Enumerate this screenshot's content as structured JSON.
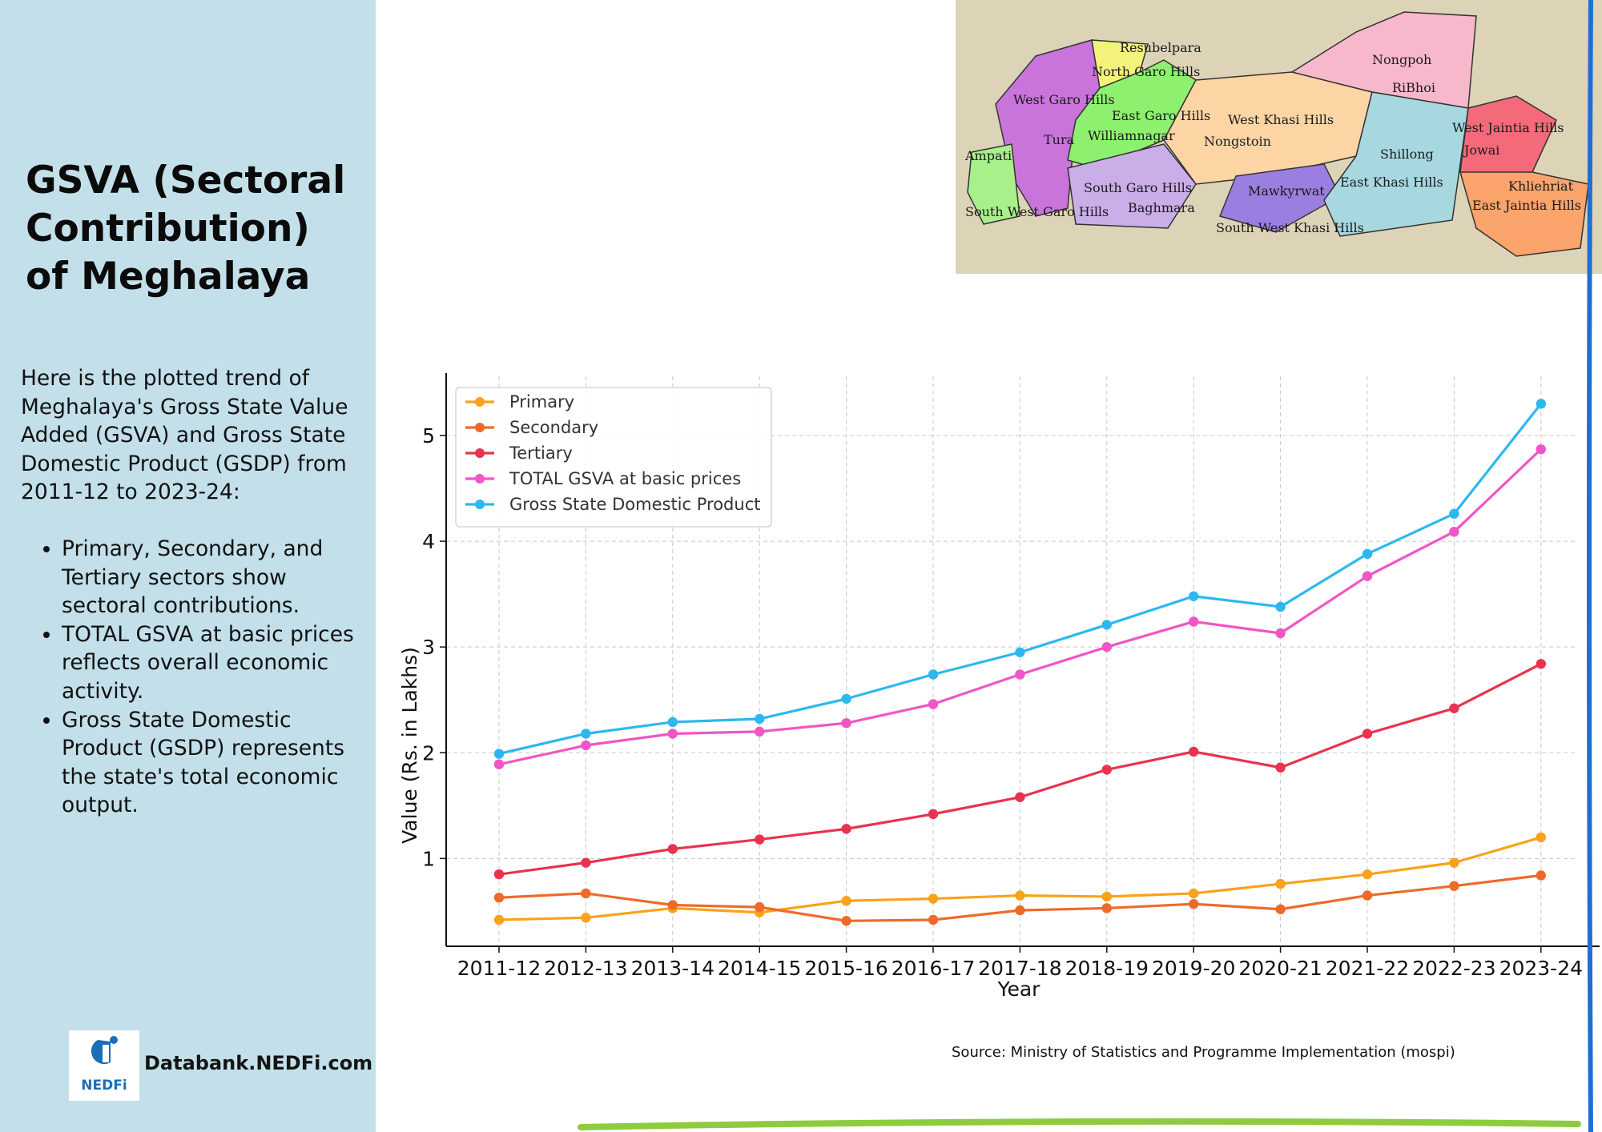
{
  "sidebar": {
    "title": "GSVA (Sectoral Contribution) of Meghalaya",
    "intro": "Here is the plotted trend of Meghalaya's Gross State Value Added (GSVA) and Gross State Domestic Product (GSDP) from 2011-12 to 2023-24:",
    "bullets": [
      "Primary, Secondary, and Tertiary sectors show sectoral contributions.",
      "TOTAL GSVA at basic prices reflects overall economic activity.",
      "Gross State Domestic Product (GSDP) represents the state's total economic output."
    ],
    "logo_text": "Databank.NEDFi.com",
    "logo_mark": "NEDFi"
  },
  "map": {
    "labels": [
      "Resubelpara",
      "North Garo Hills",
      "West Garo Hills",
      "Tura",
      "East Garo Hills",
      "Williamnagar",
      "Ampati",
      "South West Garo Hills",
      "South Garo Hills",
      "Baghmara",
      "West Khasi Hills",
      "Nongstoin",
      "Mawkyrwat",
      "South West Khasi Hills",
      "Nongpoh",
      "RiBhoi",
      "Shillong",
      "East Khasi Hills",
      "West Jaintia Hills",
      "Jowai",
      "Khliehriat",
      "East Jaintia Hills"
    ]
  },
  "source": "Source: Ministry of Statistics and Programme Implementation (mospi)",
  "colors": {
    "sidebar": "#c3e0ea",
    "primary": "#f9a21b",
    "secondary": "#ee6a2a",
    "tertiary": "#e8334f",
    "gsva": "#f155c6",
    "gsdp": "#2cb8ef",
    "edge": "#1f6fd1",
    "green": "#8ecb3f"
  },
  "chart_data": {
    "type": "line",
    "xlabel": "Year",
    "ylabel": "Value (Rs. in Lakhs)",
    "ylim": [
      0.17,
      5.56
    ],
    "yticks": [
      1,
      2,
      3,
      4,
      5
    ],
    "grid": true,
    "legend_position": "top-left",
    "categories": [
      "2011-12",
      "2012-13",
      "2013-14",
      "2014-15",
      "2015-16",
      "2016-17",
      "2017-18",
      "2018-19",
      "2019-20",
      "2020-21",
      "2021-22",
      "2022-23",
      "2023-24"
    ],
    "series": [
      {
        "name": "Primary",
        "color": "#f9a21b",
        "values": [
          0.42,
          0.44,
          0.53,
          0.49,
          0.6,
          0.62,
          0.65,
          0.64,
          0.67,
          0.76,
          0.85,
          0.96,
          1.2
        ]
      },
      {
        "name": "Secondary",
        "color": "#ee6a2a",
        "values": [
          0.63,
          0.67,
          0.56,
          0.54,
          0.41,
          0.42,
          0.51,
          0.53,
          0.57,
          0.52,
          0.65,
          0.74,
          0.84
        ]
      },
      {
        "name": "Tertiary",
        "color": "#e8334f",
        "values": [
          0.85,
          0.96,
          1.09,
          1.18,
          1.28,
          1.42,
          1.58,
          1.84,
          2.01,
          1.86,
          2.18,
          2.42,
          2.84
        ]
      },
      {
        "name": "TOTAL GSVA at basic prices",
        "color": "#f155c6",
        "values": [
          1.89,
          2.07,
          2.18,
          2.2,
          2.28,
          2.46,
          2.74,
          3.0,
          3.24,
          3.13,
          3.67,
          4.09,
          4.87
        ]
      },
      {
        "name": "Gross State Domestic Product",
        "color": "#2cb8ef",
        "values": [
          1.99,
          2.18,
          2.29,
          2.32,
          2.51,
          2.74,
          2.95,
          3.21,
          3.48,
          3.38,
          3.88,
          4.26,
          5.3
        ]
      }
    ]
  }
}
